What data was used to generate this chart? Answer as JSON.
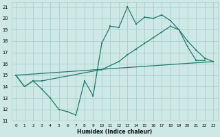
{
  "xlabel": "Humidex (Indice chaleur)",
  "xlim": [
    -0.5,
    23.5
  ],
  "ylim": [
    11,
    21.4
  ],
  "xticks": [
    0,
    1,
    2,
    3,
    4,
    5,
    6,
    7,
    8,
    9,
    10,
    11,
    12,
    13,
    14,
    15,
    16,
    17,
    18,
    19,
    20,
    21,
    22,
    23
  ],
  "yticks": [
    11,
    12,
    13,
    14,
    15,
    16,
    17,
    18,
    19,
    20,
    21
  ],
  "background_color": "#cde8e5",
  "grid_color": "#aacfcb",
  "line_color": "#1f7872",
  "line1_x": [
    0,
    1,
    2,
    3,
    4,
    5,
    6,
    7,
    8,
    9,
    10,
    11,
    12,
    13,
    14,
    15,
    16,
    17,
    18,
    19,
    20,
    21,
    22
  ],
  "line1_y": [
    15,
    14,
    14.5,
    13.8,
    13.0,
    12.0,
    11.8,
    11.5,
    14.5,
    13.2,
    17.8,
    19.3,
    19.2,
    21.0,
    19.5,
    20.1,
    20.0,
    20.3,
    19.8,
    19.0,
    17.5,
    16.3,
    16.3
  ],
  "line2_x": [
    0,
    1,
    2,
    3,
    10,
    12,
    13,
    14,
    15,
    16,
    17,
    18,
    19,
    20,
    21,
    22,
    23
  ],
  "line2_y": [
    15,
    14,
    14.5,
    14.5,
    15.5,
    16.2,
    16.8,
    17.3,
    17.8,
    18.3,
    18.8,
    19.3,
    19.0,
    18.0,
    17.2,
    16.5,
    16.2
  ],
  "line3_x": [
    0,
    23
  ],
  "line3_y": [
    15.0,
    16.2
  ]
}
